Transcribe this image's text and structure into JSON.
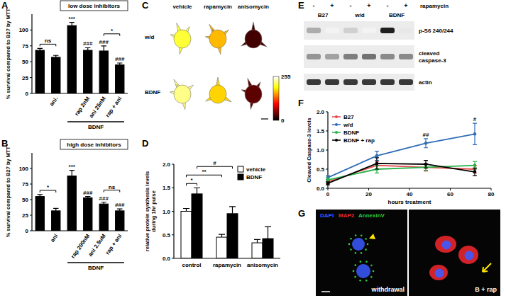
{
  "chart_data": [
    {
      "panel": "A",
      "type": "bar",
      "title": "low dose inhibitors",
      "ylabel": "% survival compared to B27 by MTT",
      "categories": [
        null,
        "ani.",
        null,
        "rap 2nM",
        "ani 25nM",
        "rap + ani"
      ],
      "values": [
        68,
        57,
        107,
        68,
        67,
        45
      ],
      "errors": [
        3,
        3,
        5,
        4,
        8,
        3
      ],
      "color": "#000000",
      "ylim": [
        0,
        125
      ],
      "yticks": [
        0,
        25,
        50,
        75,
        100
      ],
      "groups": [
        {
          "label": "BDNF",
          "from": 2,
          "to": 5
        }
      ],
      "annotations": [
        {
          "text": "ns",
          "from": 0,
          "to": 1
        },
        {
          "text": "***",
          "at": 2
        },
        {
          "text": "###",
          "at": 3
        },
        {
          "text": "###",
          "at": 4
        },
        {
          "text": "###",
          "at": 5
        },
        {
          "text": "*",
          "from": 4,
          "to": 5
        }
      ]
    },
    {
      "panel": "B",
      "type": "bar",
      "title": "high dose inhibitors",
      "ylabel": "% survival compared to B27 by MTT",
      "categories": [
        null,
        "ani",
        null,
        "rap 200nM",
        "ani 2.5uM",
        "rap + ani"
      ],
      "values": [
        55,
        32,
        88,
        53,
        43,
        32
      ],
      "errors": [
        3,
        4,
        9,
        2,
        3,
        3
      ],
      "color": "#000000",
      "ylim": [
        0,
        125
      ],
      "yticks": [
        0,
        25,
        50,
        75,
        100
      ],
      "groups": [
        {
          "label": "BDNF",
          "from": 2,
          "to": 5
        }
      ],
      "annotations": [
        {
          "text": "*",
          "from": 0,
          "to": 1
        },
        {
          "text": "***",
          "at": 2
        },
        {
          "text": "###",
          "at": 3
        },
        {
          "text": "###",
          "at": 4
        },
        {
          "text": "###",
          "at": 5
        },
        {
          "text": "ns",
          "from": 4,
          "to": 5
        }
      ]
    },
    {
      "panel": "D",
      "type": "bar",
      "ylabel": [
        "relative protein synthesis levels",
        "during 1hr pulse"
      ],
      "categories": [
        "control",
        "rapamycin",
        "anisomycin"
      ],
      "series": [
        {
          "name": "vehicle",
          "color": "#ffffff",
          "values": [
            1.0,
            0.45,
            0.33
          ],
          "errors": [
            0.06,
            0.06,
            0.07
          ]
        },
        {
          "name": "BDNF",
          "color": "#000000",
          "values": [
            1.37,
            0.95,
            0.42
          ],
          "errors": [
            0.13,
            0.15,
            0.25
          ]
        }
      ],
      "ylim": [
        0,
        2
      ],
      "yticks": [
        {
          "value": 0,
          "label": "0.0"
        },
        {
          "value": 0.5,
          "label": "0.5"
        },
        {
          "value": 1,
          "label": "1.0"
        },
        {
          "value": 1.5,
          "label": "1.5"
        },
        {
          "value": 2,
          "label": "2.0"
        }
      ],
      "legend": "top-right",
      "annotations": [
        {
          "text": "*",
          "from": [
            0,
            0
          ],
          "to": [
            0,
            1
          ]
        },
        {
          "text": "**",
          "from": [
            0,
            0
          ],
          "to": [
            1,
            0
          ]
        },
        {
          "text": "#",
          "from": [
            0,
            1
          ],
          "to": [
            1,
            1
          ]
        }
      ]
    },
    {
      "panel": "F",
      "type": "line",
      "xlabel": "hours treatment",
      "ylabel": "Cleaved Caspase-3 levels",
      "x": [
        0,
        24,
        48,
        72
      ],
      "series": [
        {
          "name": "B27",
          "color": "#e8474a",
          "values": [
            0.17,
            0.6,
            0.55,
            0.5
          ],
          "errors": [
            0.05,
            0.1,
            0.1,
            0.1
          ]
        },
        {
          "name": "w/d",
          "color": "#2f6db5",
          "values": [
            0.28,
            0.85,
            1.18,
            1.42
          ],
          "errors": [
            0.05,
            0.12,
            0.12,
            0.28
          ]
        },
        {
          "name": "BDNF",
          "color": "#27b24a",
          "values": [
            0.22,
            0.5,
            0.55,
            0.6
          ],
          "errors": [
            0.05,
            0.1,
            0.08,
            0.1
          ]
        },
        {
          "name": "BDNF + rap",
          "color": "#000000",
          "values": [
            0.13,
            0.65,
            0.63,
            0.43
          ],
          "errors": [
            0.04,
            0.15,
            0.1,
            0.1
          ]
        }
      ],
      "marker": "circle",
      "xlim": [
        0,
        80
      ],
      "xticks": [
        0,
        20,
        40,
        60,
        80
      ],
      "ylim": [
        0,
        2
      ],
      "yticks": [
        {
          "value": 0,
          "label": "0.0"
        },
        {
          "value": 0.5,
          "label": "0.5"
        },
        {
          "value": 1,
          "label": "1.0"
        },
        {
          "value": 1.5,
          "label": "1.5"
        },
        {
          "value": 2,
          "label": "2.0"
        }
      ],
      "legend": "top-left",
      "annotations": [
        {
          "text": "##",
          "x": 48
        },
        {
          "text": "#",
          "x": 72
        }
      ]
    }
  ],
  "images": {
    "panel": "C",
    "columns": [
      "vehicle",
      "rapamycin",
      "anisomycin"
    ],
    "rows": [
      "w/d",
      "BDNF"
    ],
    "brightness": [
      [
        205,
        165,
        25
      ],
      [
        225,
        175,
        35
      ]
    ],
    "colorbar": {
      "range": [
        0,
        255
      ],
      "ticks": [
        0,
        255
      ]
    }
  },
  "blot": {
    "panel": "E",
    "treatment": "rapamycin",
    "lanes": [
      "-",
      "+",
      "-",
      "+",
      "-",
      "+"
    ],
    "groups": [
      "B27",
      "w/d",
      "BDNF"
    ],
    "rows": [
      {
        "label": [
          "p-S6 240/244"
        ],
        "bands": [
          0.35,
          0.05,
          0.2,
          0.05,
          0.95,
          0.1
        ]
      },
      {
        "label": [
          "cleaved",
          "caspase-3"
        ],
        "bands": [
          0.45,
          0.4,
          0.55,
          0.6,
          0.5,
          0.5
        ]
      },
      {
        "label": [
          "actin"
        ],
        "bands": [
          0.85,
          0.85,
          0.85,
          0.85,
          0.85,
          0.85
        ]
      }
    ]
  },
  "micrograph": {
    "panel": "G",
    "channels": [
      {
        "name": "DAPI",
        "color": "#3b5bff"
      },
      {
        "name": "MAP2",
        "color": "#e8262b"
      },
      {
        "name": "AnnexinV",
        "color": "#2ecc40"
      }
    ],
    "labels": [
      "withdrawal",
      "B + rap"
    ]
  }
}
